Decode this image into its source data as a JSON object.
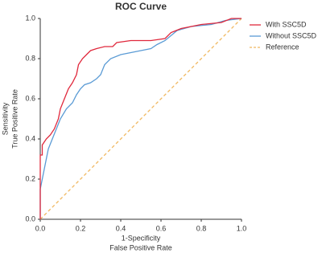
{
  "chart_data": {
    "type": "line",
    "title": "ROC Curve",
    "xlabel": [
      "1-Specificity",
      "False Positive Rate"
    ],
    "ylabel": [
      "Sensitivity",
      "True Positive Rate"
    ],
    "xlim": [
      0,
      1
    ],
    "ylim": [
      0,
      1
    ],
    "xticks": [
      {
        "value": 0,
        "label": "0.0"
      },
      0.2,
      0.4,
      0.6,
      0.8,
      {
        "value": 1,
        "label": "1.0"
      }
    ],
    "yticks": [
      {
        "value": 0,
        "label": "0.0"
      },
      0.2,
      0.4,
      0.6,
      0.8,
      {
        "value": 1,
        "label": "1.0"
      }
    ],
    "legend": "upper right",
    "series": [
      {
        "name": "With SSC5D",
        "color": "#e0283c",
        "style": "solid",
        "x": [
          0,
          0,
          0.01,
          0.01,
          0.03,
          0.05,
          0.07,
          0.09,
          0.1,
          0.12,
          0.14,
          0.16,
          0.18,
          0.19,
          0.21,
          0.23,
          0.25,
          0.28,
          0.32,
          0.36,
          0.38,
          0.45,
          0.55,
          0.62,
          0.65,
          0.7,
          0.8,
          0.9,
          0.95,
          1
        ],
        "values": [
          0,
          0.32,
          0.32,
          0.37,
          0.4,
          0.42,
          0.45,
          0.5,
          0.55,
          0.6,
          0.65,
          0.68,
          0.72,
          0.77,
          0.8,
          0.82,
          0.84,
          0.85,
          0.86,
          0.86,
          0.88,
          0.89,
          0.89,
          0.9,
          0.93,
          0.95,
          0.97,
          0.98,
          1,
          1
        ]
      },
      {
        "name": "Without SSC5D",
        "color": "#5b9bd5",
        "style": "solid",
        "x": [
          0,
          0,
          0.01,
          0.02,
          0.03,
          0.04,
          0.06,
          0.08,
          0.1,
          0.13,
          0.16,
          0.18,
          0.2,
          0.22,
          0.25,
          0.28,
          0.3,
          0.32,
          0.35,
          0.4,
          0.45,
          0.5,
          0.55,
          0.58,
          0.62,
          0.68,
          0.75,
          0.85,
          0.92,
          1
        ],
        "values": [
          0,
          0.15,
          0.2,
          0.25,
          0.3,
          0.35,
          0.4,
          0.45,
          0.5,
          0.55,
          0.58,
          0.62,
          0.65,
          0.67,
          0.68,
          0.7,
          0.72,
          0.77,
          0.8,
          0.82,
          0.83,
          0.84,
          0.85,
          0.87,
          0.89,
          0.94,
          0.96,
          0.97,
          0.99,
          1
        ]
      },
      {
        "name": "Reference",
        "color": "#f0b860",
        "style": "dashed",
        "x": [
          0,
          1
        ],
        "values": [
          0,
          1
        ]
      }
    ]
  }
}
